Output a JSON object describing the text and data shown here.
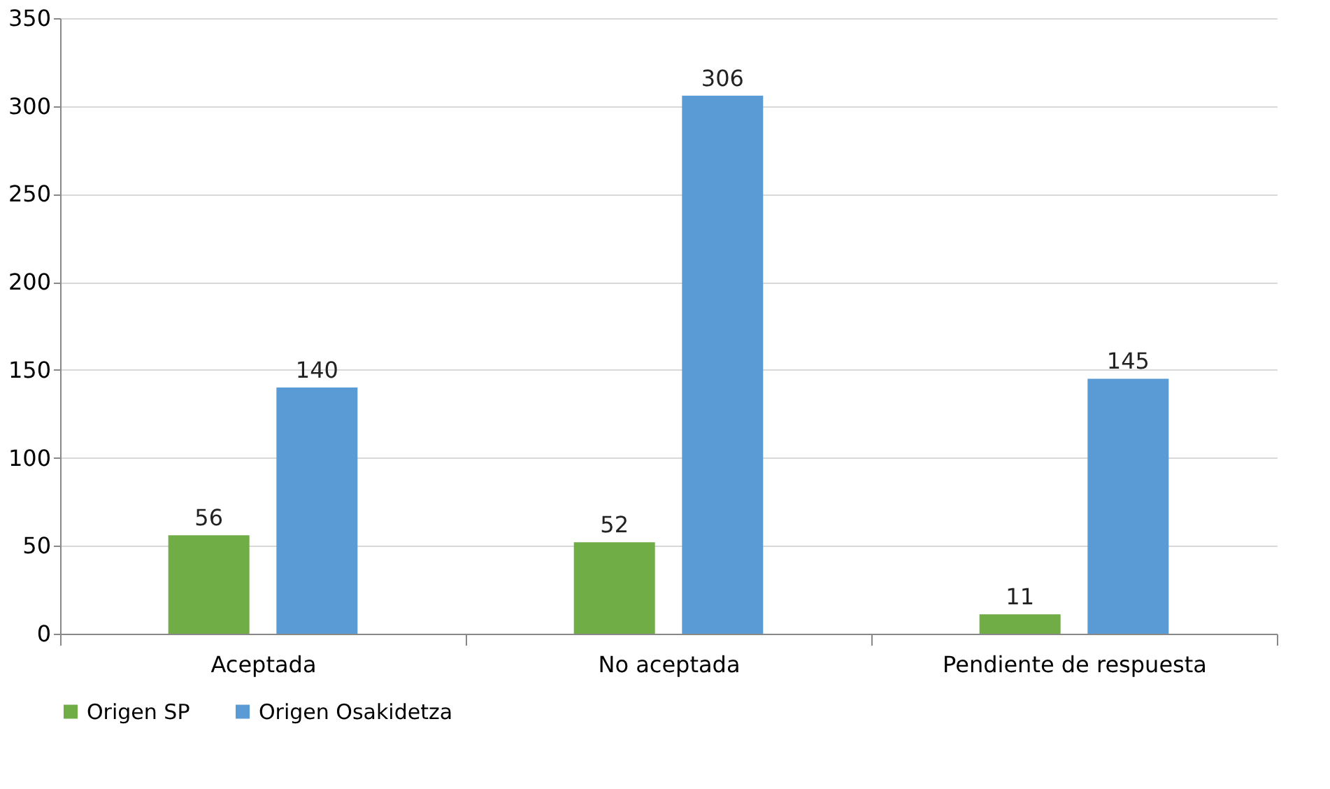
{
  "chart_data": {
    "type": "bar",
    "categories": [
      "Aceptada",
      "No aceptada",
      "Pendiente de respuesta"
    ],
    "series": [
      {
        "name": "Origen SP",
        "color": "#70ad47",
        "values": [
          56,
          52,
          11
        ]
      },
      {
        "name": "Origen Osakidetza",
        "color": "#5b9bd5",
        "values": [
          140,
          306,
          145
        ]
      }
    ],
    "ylim": [
      0,
      350
    ],
    "yticks": [
      0,
      50,
      100,
      150,
      200,
      250,
      300,
      350
    ],
    "grid": "y",
    "legend": "bottom",
    "data_labels": true
  }
}
